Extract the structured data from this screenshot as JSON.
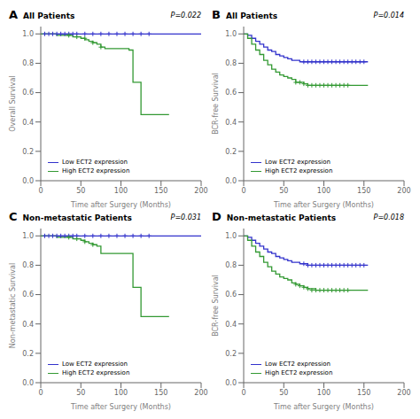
{
  "chart_data": [
    {
      "type": "step",
      "panel_label": "A",
      "title": "All Patients",
      "xlabel": "Time after Surgery (Months)",
      "ylabel": "Overall Survival",
      "annotations": [
        "P=0.022"
      ],
      "xlim": [
        0,
        200
      ],
      "xticks": [
        0,
        50,
        100,
        150,
        200
      ],
      "ylim": [
        0.0,
        1.05
      ],
      "yticks": [
        {
          "value": 0.0,
          "label": "0.0"
        },
        0.2,
        0.4,
        0.6,
        0.8,
        {
          "value": 1.0,
          "label": "1.0"
        }
      ],
      "legend": "lower left",
      "grid": false,
      "series": [
        {
          "name": "Low ECT2 expression",
          "color": "#3333CC",
          "marker": "plus",
          "x": [
            0,
            10,
            20,
            30,
            40,
            50,
            60,
            70,
            80,
            90,
            100,
            110,
            120,
            130,
            140,
            150,
            160,
            170,
            180,
            190,
            200
          ],
          "values": [
            1.0,
            1.0,
            1.0,
            1.0,
            1.0,
            1.0,
            1.0,
            1.0,
            1.0,
            1.0,
            1.0,
            1.0,
            1.0,
            1.0,
            1.0,
            1.0,
            1.0,
            1.0,
            1.0,
            1.0,
            1.0
          ],
          "censor_x": [
            5,
            10,
            15,
            20,
            25,
            30,
            35,
            40,
            45,
            55,
            65,
            75,
            85,
            95,
            105,
            115,
            125,
            135
          ],
          "censor_y": [
            1.0,
            1.0,
            1.0,
            1.0,
            1.0,
            1.0,
            1.0,
            1.0,
            1.0,
            1.0,
            1.0,
            1.0,
            1.0,
            1.0,
            1.0,
            1.0,
            1.0,
            1.0
          ]
        },
        {
          "name": "High ECT2 expression",
          "color": "#339933",
          "marker": "plus",
          "x": [
            0,
            5,
            10,
            20,
            30,
            40,
            50,
            55,
            60,
            65,
            70,
            75,
            80,
            90,
            100,
            110,
            115,
            120,
            125,
            130,
            160
          ],
          "values": [
            1.0,
            1.0,
            1.0,
            0.99,
            0.99,
            0.98,
            0.97,
            0.96,
            0.95,
            0.94,
            0.93,
            0.91,
            0.9,
            0.9,
            0.9,
            0.89,
            0.67,
            0.67,
            0.45,
            0.45,
            0.45
          ],
          "censor_x": [
            35,
            45,
            55,
            65,
            75
          ],
          "censor_y": [
            0.99,
            0.98,
            0.97,
            0.94,
            0.91
          ]
        }
      ]
    },
    {
      "type": "step",
      "panel_label": "B",
      "title": "All Patients",
      "xlabel": "Time after Surgery (Months)",
      "ylabel": "BCR-free Survival",
      "annotations": [
        "P=0.014"
      ],
      "xlim": [
        0,
        200
      ],
      "xticks": [
        0,
        50,
        100,
        150,
        200
      ],
      "ylim": [
        0.0,
        1.05
      ],
      "yticks": [
        {
          "value": 0.0,
          "label": "0.0"
        },
        0.2,
        0.4,
        0.6,
        0.8,
        {
          "value": 1.0,
          "label": "1.0"
        }
      ],
      "legend": "lower left",
      "grid": false,
      "series": [
        {
          "name": "Low ECT2 expression",
          "color": "#3333CC",
          "marker": "plus",
          "x": [
            0,
            5,
            10,
            15,
            20,
            25,
            30,
            35,
            40,
            45,
            50,
            55,
            60,
            65,
            70,
            75,
            80,
            90,
            100,
            110,
            120,
            130,
            140,
            150,
            155
          ],
          "values": [
            1.0,
            0.99,
            0.97,
            0.95,
            0.93,
            0.91,
            0.89,
            0.88,
            0.86,
            0.85,
            0.84,
            0.83,
            0.82,
            0.82,
            0.81,
            0.81,
            0.81,
            0.81,
            0.81,
            0.81,
            0.81,
            0.81,
            0.81,
            0.81,
            0.81
          ],
          "censor_x": [
            75,
            80,
            85,
            90,
            95,
            100,
            105,
            110,
            115,
            120,
            125,
            130,
            135,
            140,
            145,
            150
          ],
          "censor_y": [
            0.81,
            0.81,
            0.81,
            0.81,
            0.81,
            0.81,
            0.81,
            0.81,
            0.81,
            0.81,
            0.81,
            0.81,
            0.81,
            0.81,
            0.81,
            0.81
          ]
        },
        {
          "name": "High ECT2 expression",
          "color": "#339933",
          "marker": "plus",
          "x": [
            0,
            5,
            10,
            15,
            20,
            25,
            30,
            35,
            40,
            45,
            50,
            55,
            60,
            65,
            70,
            75,
            80,
            90,
            100,
            110,
            120,
            130,
            155
          ],
          "values": [
            1.0,
            0.97,
            0.93,
            0.89,
            0.86,
            0.82,
            0.79,
            0.76,
            0.74,
            0.72,
            0.71,
            0.7,
            0.69,
            0.67,
            0.67,
            0.66,
            0.65,
            0.65,
            0.65,
            0.65,
            0.65,
            0.65,
            0.65
          ],
          "censor_x": [
            65,
            70,
            75,
            80,
            85,
            90,
            95,
            100,
            105,
            110,
            115,
            120,
            125,
            130
          ],
          "censor_y": [
            0.67,
            0.67,
            0.66,
            0.65,
            0.65,
            0.65,
            0.65,
            0.65,
            0.65,
            0.65,
            0.65,
            0.65,
            0.65,
            0.65
          ]
        }
      ]
    },
    {
      "type": "step",
      "panel_label": "C",
      "title": "Non-metastatic Patients",
      "xlabel": "Time after Surgery (Months)",
      "ylabel": "Non-metastatic Survival",
      "annotations": [
        "P=0.031"
      ],
      "xlim": [
        0,
        200
      ],
      "xticks": [
        0,
        50,
        100,
        150,
        200
      ],
      "ylim": [
        0.0,
        1.05
      ],
      "yticks": [
        {
          "value": 0.0,
          "label": "0.0"
        },
        0.2,
        0.4,
        0.6,
        0.8,
        {
          "value": 1.0,
          "label": "1.0"
        }
      ],
      "legend": "lower left",
      "grid": false,
      "series": [
        {
          "name": "Low ECT2 expression",
          "color": "#3333CC",
          "marker": "plus",
          "x": [
            0,
            10,
            20,
            30,
            40,
            50,
            60,
            70,
            80,
            90,
            100,
            110,
            120,
            130,
            140,
            150,
            160,
            170,
            180,
            190,
            200
          ],
          "values": [
            1.0,
            1.0,
            1.0,
            1.0,
            1.0,
            1.0,
            1.0,
            1.0,
            1.0,
            1.0,
            1.0,
            1.0,
            1.0,
            1.0,
            1.0,
            1.0,
            1.0,
            1.0,
            1.0,
            1.0,
            1.0
          ],
          "censor_x": [
            5,
            10,
            15,
            20,
            25,
            30,
            35,
            40,
            45,
            55,
            65,
            75,
            85,
            95,
            105,
            115,
            125,
            135
          ],
          "censor_y": [
            1.0,
            1.0,
            1.0,
            1.0,
            1.0,
            1.0,
            1.0,
            1.0,
            1.0,
            1.0,
            1.0,
            1.0,
            1.0,
            1.0,
            1.0,
            1.0,
            1.0,
            1.0
          ]
        },
        {
          "name": "High ECT2 expression",
          "color": "#339933",
          "marker": "plus",
          "x": [
            0,
            5,
            10,
            20,
            30,
            40,
            50,
            55,
            60,
            65,
            70,
            75,
            80,
            90,
            100,
            110,
            115,
            120,
            125,
            130,
            160
          ],
          "values": [
            1.0,
            1.0,
            1.0,
            0.99,
            0.99,
            0.98,
            0.97,
            0.96,
            0.95,
            0.94,
            0.93,
            0.88,
            0.88,
            0.88,
            0.88,
            0.88,
            0.65,
            0.65,
            0.45,
            0.45,
            0.45
          ],
          "censor_x": [
            35,
            45,
            55,
            65
          ],
          "censor_y": [
            0.99,
            0.98,
            0.96,
            0.94
          ]
        }
      ]
    },
    {
      "type": "step",
      "panel_label": "D",
      "title": "Non-metastatic Patients",
      "xlabel": "Time after Surgery (Months)",
      "ylabel": "BCR-free Survival",
      "annotations": [
        "P=0.018"
      ],
      "xlim": [
        0,
        200
      ],
      "xticks": [
        0,
        50,
        100,
        150,
        200
      ],
      "ylim": [
        0.0,
        1.05
      ],
      "yticks": [
        {
          "value": 0.0,
          "label": "0.0"
        },
        0.2,
        0.4,
        0.6,
        0.8,
        {
          "value": 1.0,
          "label": "1.0"
        }
      ],
      "legend": "lower left",
      "grid": false,
      "series": [
        {
          "name": "Low ECT2 expression",
          "color": "#3333CC",
          "marker": "plus",
          "x": [
            0,
            5,
            10,
            15,
            20,
            25,
            30,
            35,
            40,
            45,
            50,
            55,
            60,
            65,
            70,
            75,
            80,
            90,
            100,
            110,
            120,
            130,
            140,
            150,
            155
          ],
          "values": [
            1.0,
            0.99,
            0.97,
            0.95,
            0.93,
            0.91,
            0.89,
            0.88,
            0.86,
            0.85,
            0.84,
            0.83,
            0.82,
            0.82,
            0.81,
            0.81,
            0.8,
            0.8,
            0.8,
            0.8,
            0.8,
            0.8,
            0.8,
            0.8,
            0.8
          ],
          "censor_x": [
            75,
            80,
            85,
            90,
            95,
            100,
            105,
            110,
            115,
            120,
            125,
            130,
            135,
            140,
            145,
            150
          ],
          "censor_y": [
            0.81,
            0.8,
            0.8,
            0.8,
            0.8,
            0.8,
            0.8,
            0.8,
            0.8,
            0.8,
            0.8,
            0.8,
            0.8,
            0.8,
            0.8,
            0.8
          ]
        },
        {
          "name": "High ECT2 expression",
          "color": "#339933",
          "marker": "plus",
          "x": [
            0,
            5,
            10,
            15,
            20,
            25,
            30,
            35,
            40,
            45,
            50,
            55,
            60,
            65,
            70,
            75,
            80,
            90,
            100,
            110,
            120,
            130,
            155
          ],
          "values": [
            1.0,
            0.97,
            0.93,
            0.89,
            0.86,
            0.82,
            0.79,
            0.76,
            0.74,
            0.72,
            0.71,
            0.7,
            0.68,
            0.67,
            0.66,
            0.65,
            0.64,
            0.63,
            0.63,
            0.63,
            0.63,
            0.63,
            0.63
          ],
          "censor_x": [
            65,
            70,
            75,
            80,
            85,
            90,
            95,
            100,
            105,
            110,
            115,
            120,
            125,
            130
          ],
          "censor_y": [
            0.67,
            0.66,
            0.65,
            0.64,
            0.63,
            0.63,
            0.63,
            0.63,
            0.63,
            0.63,
            0.63,
            0.63,
            0.63,
            0.63
          ]
        }
      ]
    }
  ]
}
